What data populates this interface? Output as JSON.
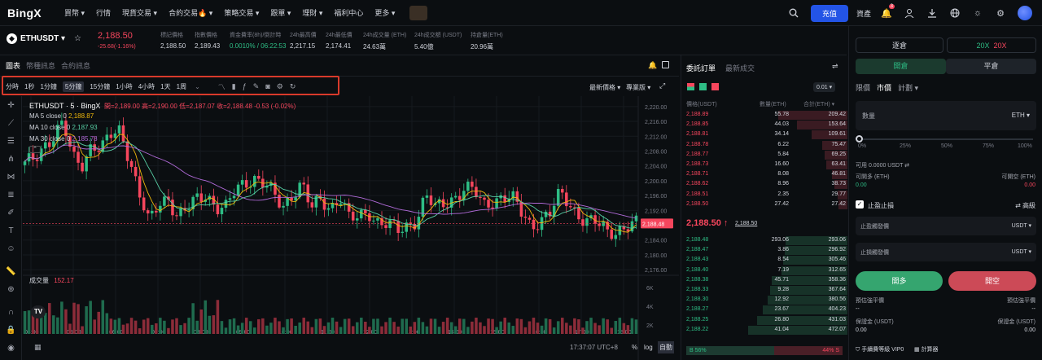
{
  "nav": {
    "logo": "BingX",
    "items": [
      "買幣 ▾",
      "行情",
      "現貨交易 ▾",
      "合約交易🔥 ▾",
      "策略交易 ▾",
      "跟單 ▾",
      "理財 ▾",
      "福利中心",
      "更多 ▾"
    ],
    "deposit": "充值",
    "assets": "資產",
    "badge": "3"
  },
  "ticker": {
    "symbol": "ETHUSDT",
    "price": "2,188.50",
    "change": "-25.68(-1.16%)",
    "stats": [
      {
        "label": "標記價格",
        "value": "2,188.50"
      },
      {
        "label": "指數價格",
        "value": "2,189.43"
      },
      {
        "label": "資金費率(8h)/倒計時",
        "value": "0.0010% / 06:22:53"
      },
      {
        "label": "24h最高價",
        "value": "2,217.15"
      },
      {
        "label": "24h最低價",
        "value": "2,174.41"
      },
      {
        "label": "24h成交量 (ETH)",
        "value": "24.63萬"
      },
      {
        "label": "24h成交額 (USDT)",
        "value": "5.40億"
      },
      {
        "label": "持倉量(ETH)",
        "value": "20.96萬"
      }
    ]
  },
  "chart_tabs": [
    "圖表",
    "幣種訊息",
    "合約訊息"
  ],
  "timeframes": [
    "分時",
    "1秒",
    "1分鐘",
    "5分鐘",
    "15分鐘",
    "1小時",
    "4小時",
    "1天",
    "1周"
  ],
  "active_timeframe": "5分鐘",
  "toolbar_right": {
    "price_type": "最新價格 ▾",
    "mode": "專業版 ▾"
  },
  "legend": {
    "title": "ETHUSDT · 5 · BingX",
    "ohlc": "開=2,189.00  高=2,190.00  低=2,187.07  收=2,188.48  -0.53 (-0.02%)",
    "ma5": "MA 5 close 0",
    "ma5v": "2,188.87",
    "ma10": "MA 10 close 0",
    "ma10v": "2,187.93",
    "ma30": "MA 30 close 0",
    "ma30v": "2,185.78",
    "volume_label": "成交量",
    "volume_value": "152.17"
  },
  "bottom_bar": {
    "time": "17:37:07 UTC+8",
    "pct": "%",
    "log": "log",
    "auto": "自動"
  },
  "chart_data": {
    "type": "candlestick",
    "y_ticks": [
      "2,220.00",
      "2,216.00",
      "2,212.00",
      "2,208.00",
      "2,204.00",
      "2,200.00",
      "2,196.00",
      "2,192.00",
      "2,188.00",
      "2,184.00",
      "2,180.00",
      "2,176.00"
    ],
    "ylim": [
      2174.5,
      2221.5
    ],
    "x_ticks": [
      "04:00",
      "05:00",
      "06:00",
      "07:00",
      "08:00",
      "09:00",
      "10:00",
      "11:00",
      "12:00",
      "13:00",
      "14:00",
      "15:00",
      "16:00",
      "17:00",
      "18:00"
    ],
    "last_price": "2,188.48",
    "volume_ticks": [
      "6K",
      "4K",
      "2K"
    ],
    "close_path": [
      2204,
      2206,
      2210,
      2212,
      2215,
      2206,
      2205,
      2210,
      2208,
      2212,
      2214,
      2206,
      2196,
      2188,
      2194,
      2196,
      2190,
      2192,
      2195,
      2197,
      2193,
      2192,
      2197,
      2200,
      2201,
      2199,
      2196,
      2193,
      2197,
      2199,
      2192,
      2195,
      2193,
      2196,
      2189,
      2190,
      2192,
      2189,
      2188,
      2186,
      2188,
      2190,
      2196,
      2192,
      2194,
      2196,
      2198,
      2197,
      2193,
      2195,
      2196,
      2195,
      2191,
      2188,
      2190,
      2191,
      2196,
      2194,
      2191,
      2189,
      2188,
      2186,
      2187,
      2188,
      2188
    ]
  },
  "orderbook": {
    "tabs": [
      "委託訂單",
      "最新成交"
    ],
    "step": "0.01 ▾",
    "headers": [
      "價格(USDT)",
      "數量(ETH)",
      "合計(ETH) ▾"
    ],
    "asks": [
      [
        "2,188.89",
        "55.78",
        "209.42"
      ],
      [
        "2,188.85",
        "44.03",
        "153.64"
      ],
      [
        "2,188.81",
        "34.14",
        "109.61"
      ],
      [
        "2,188.78",
        "6.22",
        "75.47"
      ],
      [
        "2,188.77",
        "5.84",
        "69.25"
      ],
      [
        "2,188.73",
        "16.60",
        "63.41"
      ],
      [
        "2,188.71",
        "8.08",
        "46.81"
      ],
      [
        "2,188.62",
        "8.96",
        "38.73"
      ],
      [
        "2,188.51",
        "2.35",
        "29.77"
      ],
      [
        "2,188.50",
        "27.42",
        "27.42"
      ]
    ],
    "mid_price": "2,188.50 ↑",
    "mid_mark": "2,188.50",
    "bids": [
      [
        "2,188.48",
        "293.06",
        "293.06"
      ],
      [
        "2,188.47",
        "3.86",
        "296.92"
      ],
      [
        "2,188.43",
        "8.54",
        "305.46"
      ],
      [
        "2,188.40",
        "7.19",
        "312.65"
      ],
      [
        "2,188.38",
        "45.71",
        "358.36"
      ],
      [
        "2,188.33",
        "9.28",
        "367.64"
      ],
      [
        "2,188.30",
        "12.92",
        "380.56"
      ],
      [
        "2,188.27",
        "23.67",
        "404.23"
      ],
      [
        "2,188.25",
        "26.80",
        "431.03"
      ],
      [
        "2,188.22",
        "41.04",
        "472.07"
      ]
    ],
    "buy_ratio": "B  56%",
    "sell_ratio": "44%  S"
  },
  "trade": {
    "margin_mode": "逐倉",
    "leverage_a": "20X",
    "leverage_b": "20X",
    "open_tab": "開倉",
    "close_tab": "平倉",
    "order_types": [
      "限價",
      "市價",
      "計劃 ▾"
    ],
    "qty_label": "數量",
    "qty_unit": "ETH ▾",
    "slider_marks": [
      "0%",
      "25%",
      "50%",
      "75%",
      "100%"
    ],
    "available": "可用 0.0000 USDT  ⇄",
    "can_long_label": "可開多 (ETH)",
    "can_short_label": "可開空 (ETH)",
    "can_long": "0.00",
    "can_short": "0.00",
    "tpsl": "止盈止損",
    "tpsl_adv": "⇄ 高級",
    "tp_label": "止盈觸發價",
    "sl_label": "止損觸發價",
    "unit": "USDT ▾",
    "long_btn": "開多",
    "short_btn": "開空",
    "liq_long": "預估強平價",
    "liq_short": "預估強平價",
    "liq_long_v": "--",
    "liq_short_v": "--",
    "margin_long": "保證金 (USDT)",
    "margin_short": "保證金 (USDT)",
    "margin_long_v": "0.00",
    "margin_short_v": "0.00",
    "fee": "手續費等級 VIP0",
    "calc": "計算器"
  },
  "colors": {
    "up": "#2ebd85",
    "down": "#f6465d",
    "accent": "#2354e6",
    "highlight": "#d93a2b"
  }
}
